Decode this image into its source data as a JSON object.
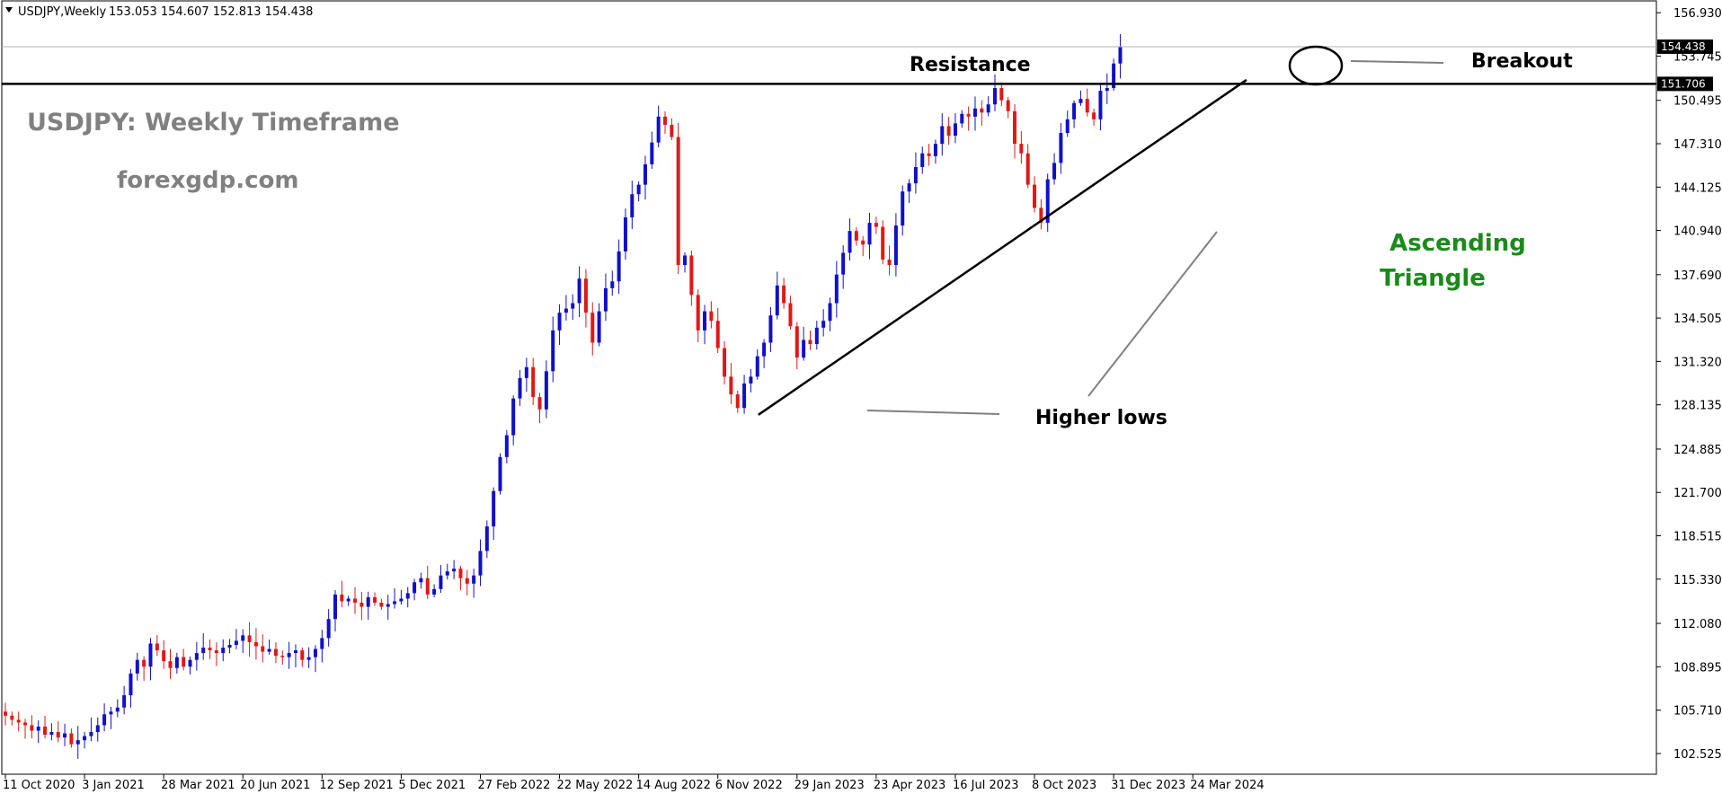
{
  "header": {
    "symbol": "USDJPY,Weekly",
    "ohlc": "153.053 154.607 152.813 154.438"
  },
  "annotations": {
    "title": "USDJPY: Weekly Timeframe",
    "website": "forexgdp.com",
    "resistance": "Resistance",
    "breakout": "Breakout",
    "pattern_line1": "Ascending",
    "pattern_line2": "Triangle",
    "higher_lows": "Higher lows"
  },
  "colors": {
    "bull": "#1010c8",
    "bear": "#e01818",
    "pattern_text": "#1a8a1a",
    "label_gray": "#808080",
    "price_box": "#000000"
  },
  "chart_data": {
    "type": "candlestick",
    "symbol": "USDJPY",
    "timeframe": "Weekly",
    "ylim": [
      101.0,
      157.8
    ],
    "y_ticks": [
      "156.930",
      "153.745",
      "150.495",
      "147.310",
      "144.125",
      "140.940",
      "137.690",
      "134.505",
      "131.320",
      "128.135",
      "124.885",
      "121.700",
      "118.515",
      "115.330",
      "112.080",
      "108.895",
      "105.710",
      "102.525"
    ],
    "x_ticks": [
      "11 Oct 2020",
      "3 Jan 2021",
      "28 Mar 2021",
      "20 Jun 2021",
      "12 Sep 2021",
      "5 Dec 2021",
      "27 Feb 2022",
      "22 May 2022",
      "14 Aug 2022",
      "6 Nov 2022",
      "29 Jan 2023",
      "23 Apr 2023",
      "16 Jul 2023",
      "8 Oct 2023",
      "31 Dec 2023",
      "24 Mar 2024"
    ],
    "price_labels": {
      "current": "154.438",
      "resistance": "151.706"
    },
    "resistance_level": 151.706,
    "current_price": 154.438,
    "trendline": {
      "from": [
        "2022-12-19",
        127.4
      ],
      "to": [
        "2024-05-20",
        152.0
      ]
    },
    "weekly_closes": [
      105.3,
      105.0,
      104.8,
      104.6,
      104.2,
      104.5,
      103.9,
      104.1,
      103.7,
      104.0,
      103.2,
      103.5,
      103.8,
      104.1,
      104.6,
      105.4,
      105.6,
      105.9,
      106.8,
      108.4,
      109.4,
      108.9,
      110.6,
      110.1,
      109.3,
      108.8,
      109.6,
      108.9,
      109.4,
      109.9,
      110.3,
      110.1,
      109.9,
      110.3,
      110.5,
      110.8,
      111.2,
      110.7,
      110.4,
      110.0,
      110.2,
      109.7,
      109.6,
      109.9,
      110.1,
      109.4,
      109.6,
      110.2,
      111.0,
      112.4,
      114.2,
      113.7,
      113.9,
      113.6,
      113.3,
      114.0,
      113.6,
      113.3,
      113.5,
      113.7,
      113.9,
      114.3,
      115.1,
      115.4,
      114.2,
      114.6,
      115.6,
      115.9,
      116.1,
      115.4,
      115.0,
      115.6,
      117.4,
      119.2,
      121.8,
      124.3,
      125.9,
      128.6,
      130.1,
      130.9,
      128.7,
      127.8,
      130.6,
      133.6,
      134.9,
      135.2,
      135.6,
      137.4,
      134.9,
      132.7,
      135.0,
      136.7,
      137.2,
      139.4,
      141.9,
      143.6,
      144.3,
      145.8,
      147.4,
      149.3,
      148.7,
      147.8,
      138.4,
      139.1,
      136.2,
      133.6,
      135.0,
      134.3,
      132.3,
      130.2,
      128.9,
      127.9,
      129.7,
      130.2,
      131.7,
      132.7,
      134.7,
      136.9,
      135.6,
      133.9,
      131.6,
      132.9,
      132.6,
      133.8,
      134.3,
      135.6,
      137.7,
      139.3,
      140.9,
      140.2,
      139.9,
      141.5,
      141.2,
      138.8,
      138.4,
      141.3,
      143.8,
      144.4,
      145.6,
      146.6,
      146.4,
      147.3,
      148.6,
      147.9,
      148.8,
      149.5,
      149.3,
      149.9,
      149.6,
      150.2,
      151.4,
      150.5,
      149.7,
      147.3,
      146.6,
      144.3,
      142.6,
      141.5,
      144.7,
      145.9,
      148.1,
      149.1,
      150.3,
      150.6,
      149.6,
      149.1,
      151.2,
      151.4,
      153.2,
      154.4
    ]
  }
}
